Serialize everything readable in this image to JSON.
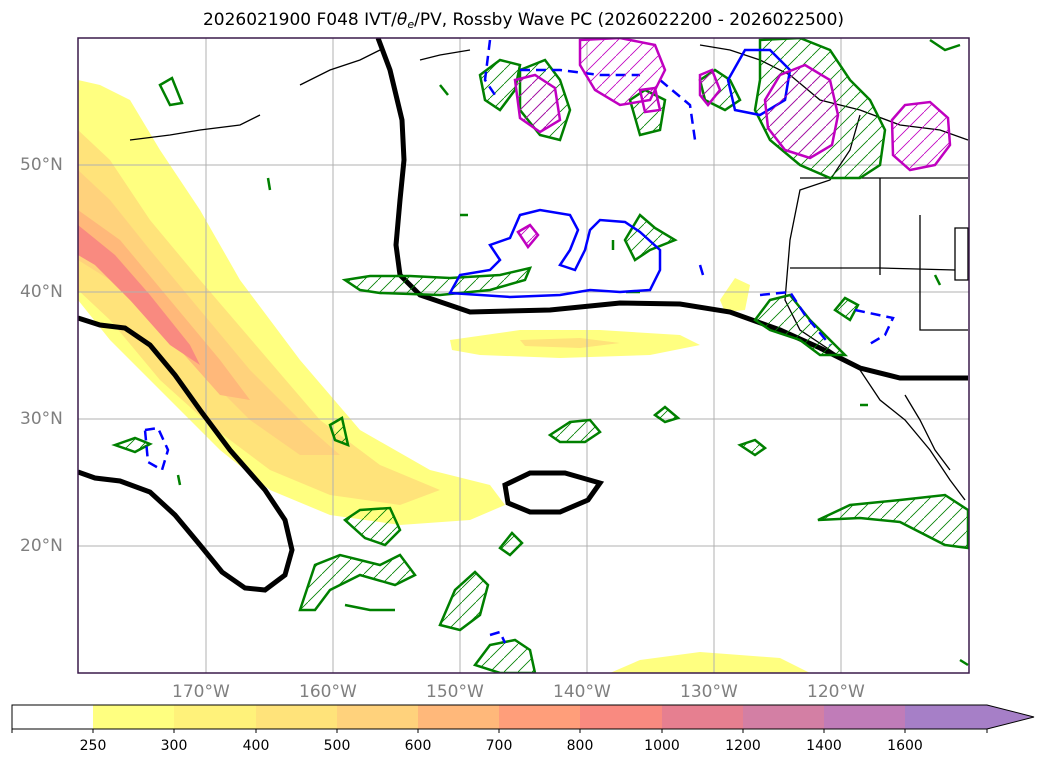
{
  "title": {
    "prefix": "2026021900 F048 IVT/",
    "theta": "θ",
    "theta_sub": "e",
    "suffix": "/PV, Rossby Wave PC (2026022200 - 2026022500)"
  },
  "map": {
    "lat_labels": [
      "50°N",
      "40°N",
      "30°N",
      "20°N"
    ],
    "lon_labels": [
      "170°W",
      "160°W",
      "150°W",
      "140°W",
      "130°W",
      "120°W"
    ],
    "lat_values": [
      50,
      40,
      30,
      20
    ],
    "lon_values": [
      -170,
      -160,
      -150,
      -140,
      -130,
      -120
    ],
    "extent": {
      "lon_min": -180,
      "lon_max": -110,
      "lat_min": 10,
      "lat_max": 60
    }
  },
  "colorbar": {
    "labels": [
      "250",
      "300",
      "400",
      "500",
      "600",
      "700",
      "800",
      "1000",
      "1200",
      "1400",
      "1600"
    ],
    "colors": [
      "#ffffff",
      "#ffff80",
      "#fff27a",
      "#ffe37a",
      "#ffd27c",
      "#ffb87a",
      "#ff9e7a",
      "#f98a80",
      "#e67f90",
      "#d37fa4",
      "#c07cb8",
      "#a67fc7"
    ],
    "extend": "max"
  },
  "legend_colors": {
    "ivt_low": "#ffff80",
    "ivt_mid": "#ffd27c",
    "ivt_high": "#ff9e7a",
    "pv_contour": "#000000",
    "rossby_positive": "#008000",
    "rossby_negative": "#0000ff",
    "theta_e": "#c000c0"
  }
}
